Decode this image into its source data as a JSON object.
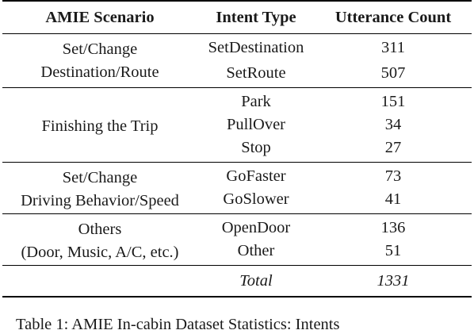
{
  "table": {
    "headers": {
      "scenario": "AMIE Scenario",
      "intent": "Intent Type",
      "count": "Utterance Count"
    },
    "groups": [
      {
        "scenario_lines": [
          "Set/Change",
          "Destination/Route"
        ],
        "rows": [
          {
            "intent": "SetDestination",
            "count": "311"
          },
          {
            "intent": "SetRoute",
            "count": "507"
          }
        ]
      },
      {
        "scenario_lines": [
          "Finishing the Trip"
        ],
        "rows": [
          {
            "intent": "Park",
            "count": "151"
          },
          {
            "intent": "PullOver",
            "count": "34"
          },
          {
            "intent": "Stop",
            "count": "27"
          }
        ]
      },
      {
        "scenario_lines": [
          "Set/Change",
          "Driving Behavior/Speed"
        ],
        "rows": [
          {
            "intent": "GoFaster",
            "count": "73"
          },
          {
            "intent": "GoSlower",
            "count": "41"
          }
        ]
      },
      {
        "scenario_lines": [
          "Others",
          "(Door, Music, A/C, etc.)"
        ],
        "rows": [
          {
            "intent": "OpenDoor",
            "count": "136"
          },
          {
            "intent": "Other",
            "count": "51"
          }
        ]
      }
    ],
    "total": {
      "label": "Total",
      "count": "1331"
    }
  },
  "caption": "Table 1: AMIE In-cabin Dataset Statistics: Intents"
}
